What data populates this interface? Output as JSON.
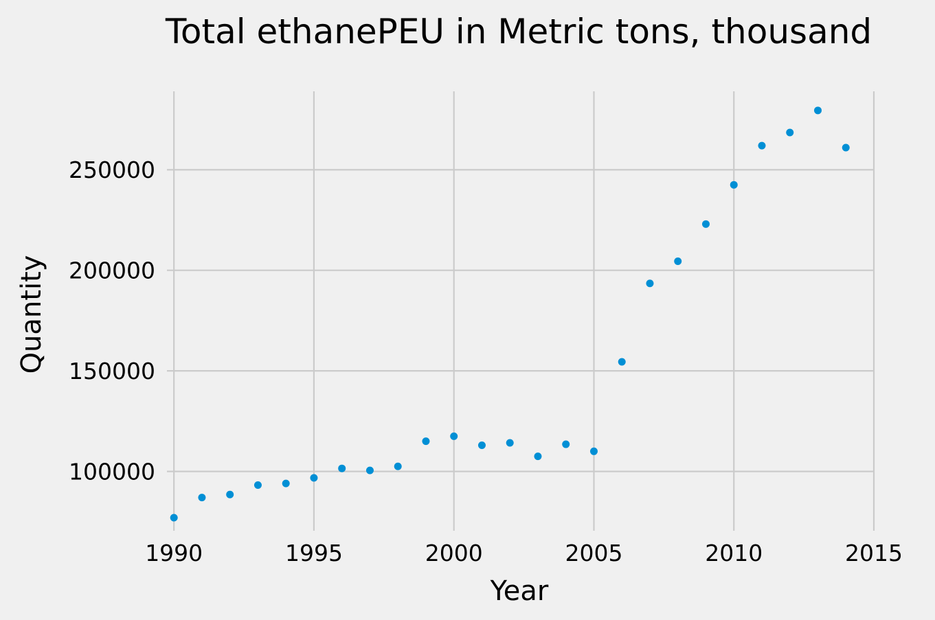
{
  "chart_data": {
    "type": "scatter",
    "title": "Total ethanePEU in Metric tons,  thousand",
    "xlabel": "Year",
    "ylabel": "Quantity",
    "xlim": [
      1989.75,
      2015
    ],
    "ylim": [
      70500,
      289000
    ],
    "xticks": [
      "1990",
      "1995",
      "2000",
      "2005",
      "2010",
      "2015"
    ],
    "yticks": [
      "100000",
      "150000",
      "200000",
      "250000"
    ],
    "grid": true,
    "marker_color": "#008fd5",
    "background": "#f0f0f0",
    "series": [
      {
        "x": [
          1990,
          1991,
          1992,
          1993,
          1994,
          1995,
          1996,
          1997,
          1998,
          1999,
          2000,
          2001,
          2002,
          2003,
          2004,
          2005,
          2006,
          2007,
          2008,
          2009,
          2010,
          2011,
          2012,
          2013,
          2014
        ],
        "y": [
          77000,
          87000,
          88500,
          93200,
          94000,
          96800,
          101500,
          100500,
          102500,
          115000,
          117500,
          113000,
          114200,
          107500,
          113500,
          110000,
          154500,
          193500,
          204500,
          223000,
          242500,
          262000,
          268500,
          279500,
          261000
        ]
      }
    ]
  }
}
